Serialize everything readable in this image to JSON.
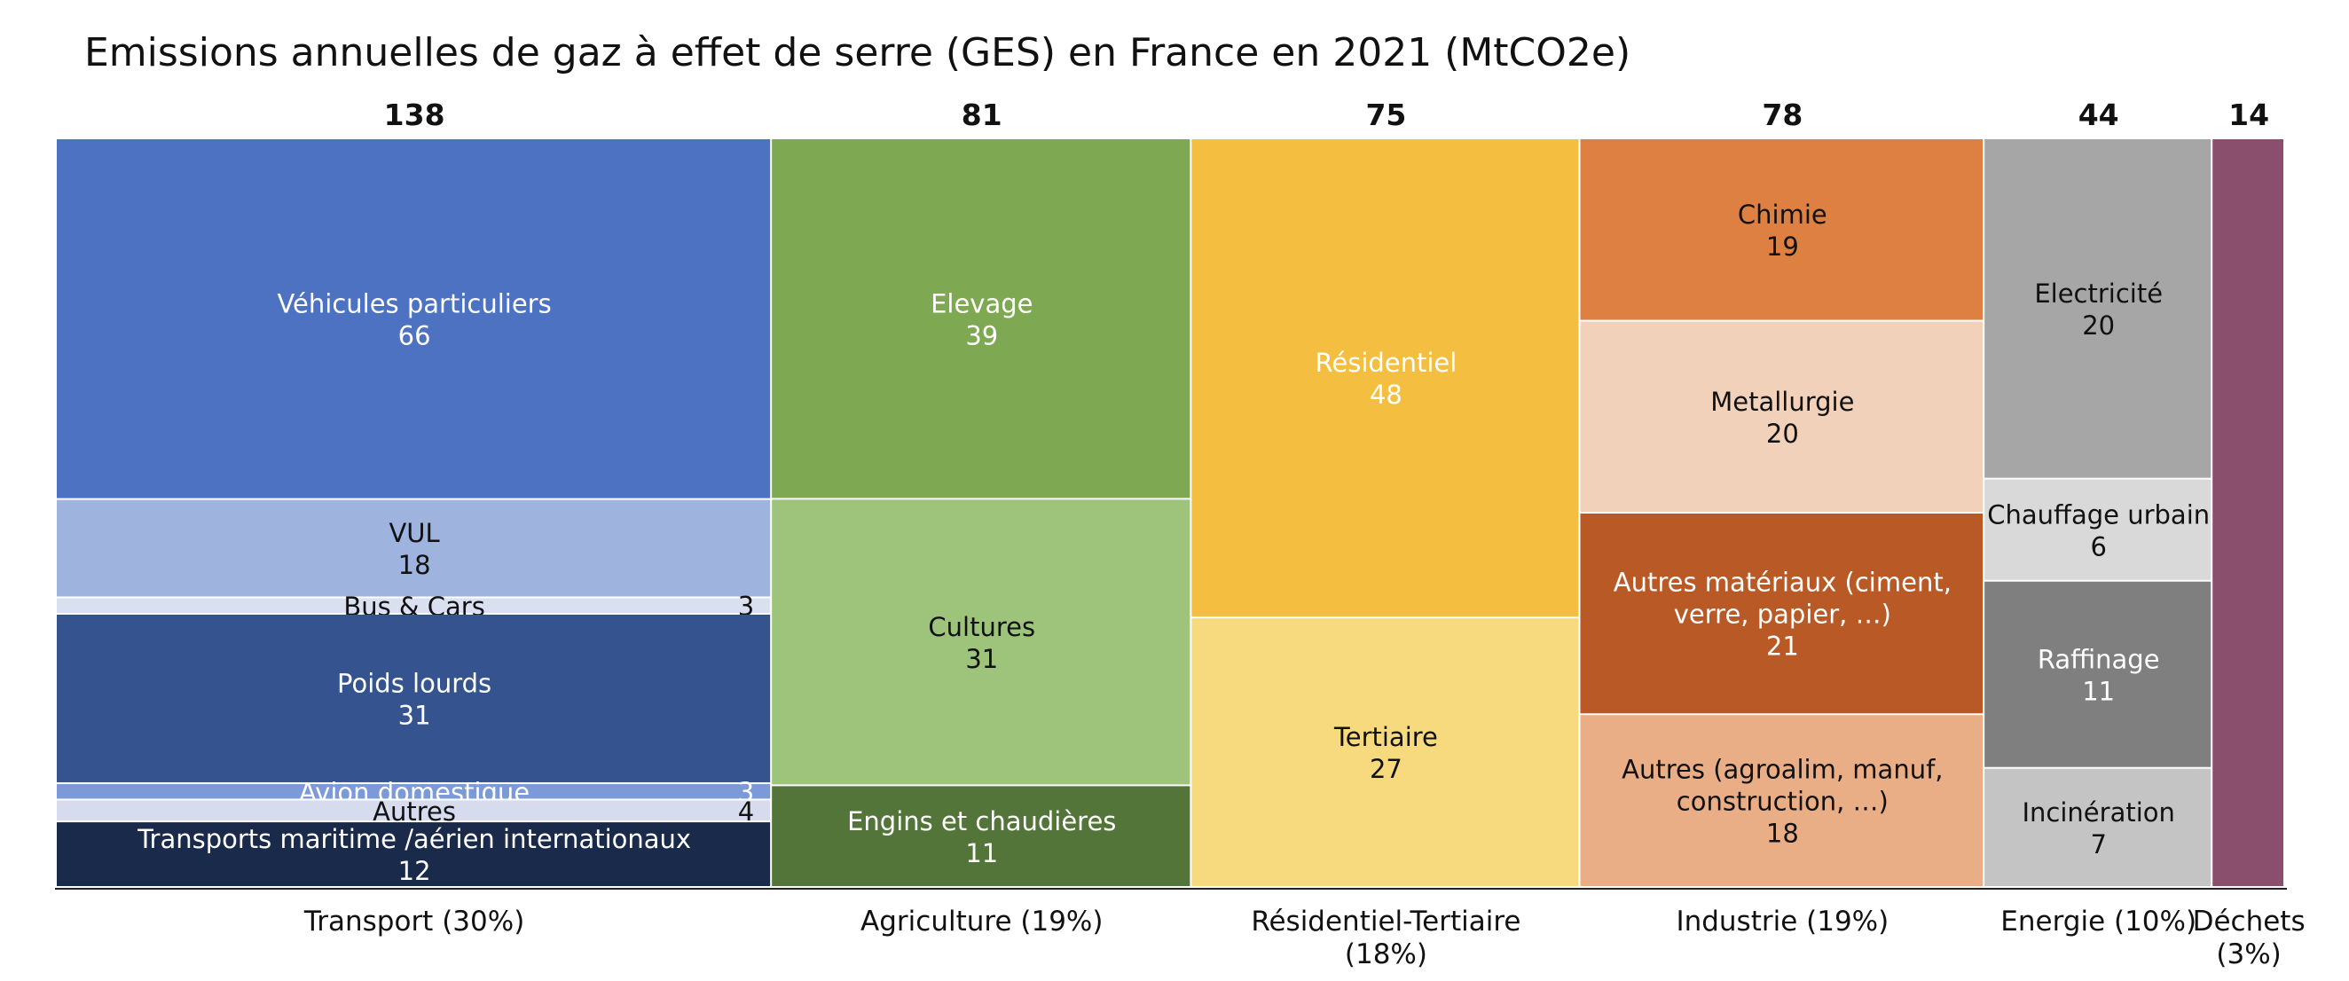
{
  "chart_data": {
    "type": "marimekko",
    "title": "Emissions annuelles de gaz à effet de serre (GES) en France en 2021 (MtCO2e)",
    "xlabel": "",
    "ylabel": "",
    "grid": false,
    "legend": "none",
    "categories": [
      {
        "name": "Transport (30%)",
        "total": 138,
        "segments": [
          {
            "label": "Véhicules particuliers",
            "value": 66,
            "color": "#4d72c2",
            "text_color": "#ffffff"
          },
          {
            "label": "VUL",
            "value": 18,
            "color": "#9fb3df",
            "text_color": "#111111"
          },
          {
            "label": "Bus & Cars",
            "value": 3,
            "color": "#d9e0f0",
            "text_color": "#111111"
          },
          {
            "label": "Poids lourds",
            "value": 31,
            "color": "#35548f",
            "text_color": "#ffffff"
          },
          {
            "label": "Avion domestique",
            "value": 3,
            "color": "#7c9ad8",
            "text_color": "#ffffff"
          },
          {
            "label": "Autres",
            "value": 4,
            "color": "#d6dcee",
            "text_color": "#111111"
          },
          {
            "label": "Transports maritime /aérien internationaux",
            "value": 12,
            "color": "#1a2a4a",
            "text_color": "#ffffff"
          }
        ]
      },
      {
        "name": "Agriculture (19%)",
        "total": 81,
        "segments": [
          {
            "label": "Elevage",
            "value": 39,
            "color": "#7ea852",
            "text_color": "#ffffff"
          },
          {
            "label": "Cultures",
            "value": 31,
            "color": "#9dc47a",
            "text_color": "#111111"
          },
          {
            "label": "Engins et chaudières",
            "value": 11,
            "color": "#53753a",
            "text_color": "#ffffff"
          }
        ]
      },
      {
        "name": "Résidentiel-Tertiaire (18%)",
        "total": 75,
        "segments": [
          {
            "label": "Résidentiel",
            "value": 48,
            "color": "#f4bf41",
            "text_color": "#ffffff"
          },
          {
            "label": "Tertiaire",
            "value": 27,
            "color": "#f7da7d",
            "text_color": "#111111"
          }
        ]
      },
      {
        "name": "Industrie (19%)",
        "total": 78,
        "segments": [
          {
            "label": "Chimie",
            "value": 19,
            "color": "#df8043",
            "text_color": "#111111"
          },
          {
            "label": "Metallurgie",
            "value": 20,
            "color": "#f1d1b9",
            "text_color": "#111111"
          },
          {
            "label": "Autres matériaux (ciment, verre, papier, …)",
            "value": 21,
            "color": "#b95a26",
            "text_color": "#ffffff"
          },
          {
            "label": "Autres (agroalim, manuf, construction, …)",
            "value": 18,
            "color": "#eaae86",
            "text_color": "#111111"
          }
        ]
      },
      {
        "name": "Energie (10%)",
        "total": 44,
        "segments": [
          {
            "label": "Electricité",
            "value": 20,
            "color": "#a6a6a6",
            "text_color": "#111111"
          },
          {
            "label": "Chauffage urbain",
            "value": 6,
            "color": "#d9d9d9",
            "text_color": "#111111"
          },
          {
            "label": "Raffinage",
            "value": 11,
            "color": "#7f7f7f",
            "text_color": "#ffffff"
          },
          {
            "label": "Incinération",
            "value": 7,
            "color": "#c4c4c4",
            "text_color": "#111111"
          }
        ]
      },
      {
        "name": "Déchets (3%)",
        "total": 14,
        "segments": [
          {
            "label": "",
            "value": 14,
            "color": "#8b4f6e",
            "text_color": "#ffffff"
          }
        ]
      }
    ]
  }
}
